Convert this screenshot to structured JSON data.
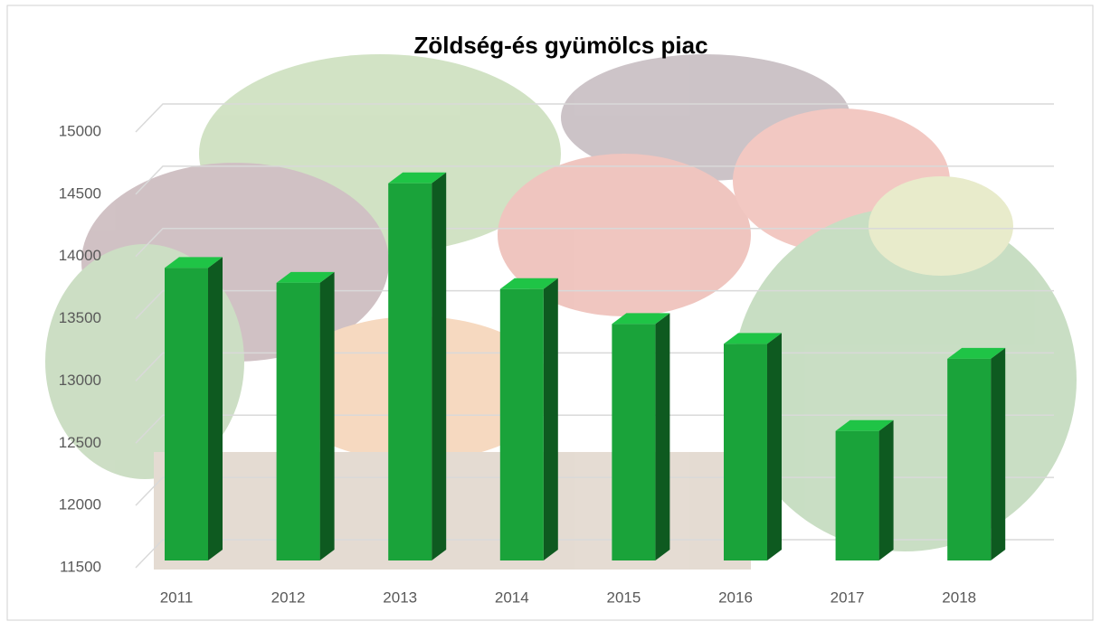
{
  "chart_data": {
    "type": "bar3d",
    "title": "Zöldség-és gyümölcs piac",
    "categories": [
      "2011",
      "2012",
      "2013",
      "2014",
      "2015",
      "2016",
      "2017",
      "2018"
    ],
    "values": [
      13850,
      13730,
      14530,
      13680,
      13400,
      13240,
      12540,
      13120
    ],
    "color": "#1aa33a",
    "ylim": [
      11500,
      15000
    ],
    "yticks": [
      11500,
      12000,
      12500,
      13000,
      13500,
      14000,
      14500,
      15000
    ],
    "grid": true
  }
}
